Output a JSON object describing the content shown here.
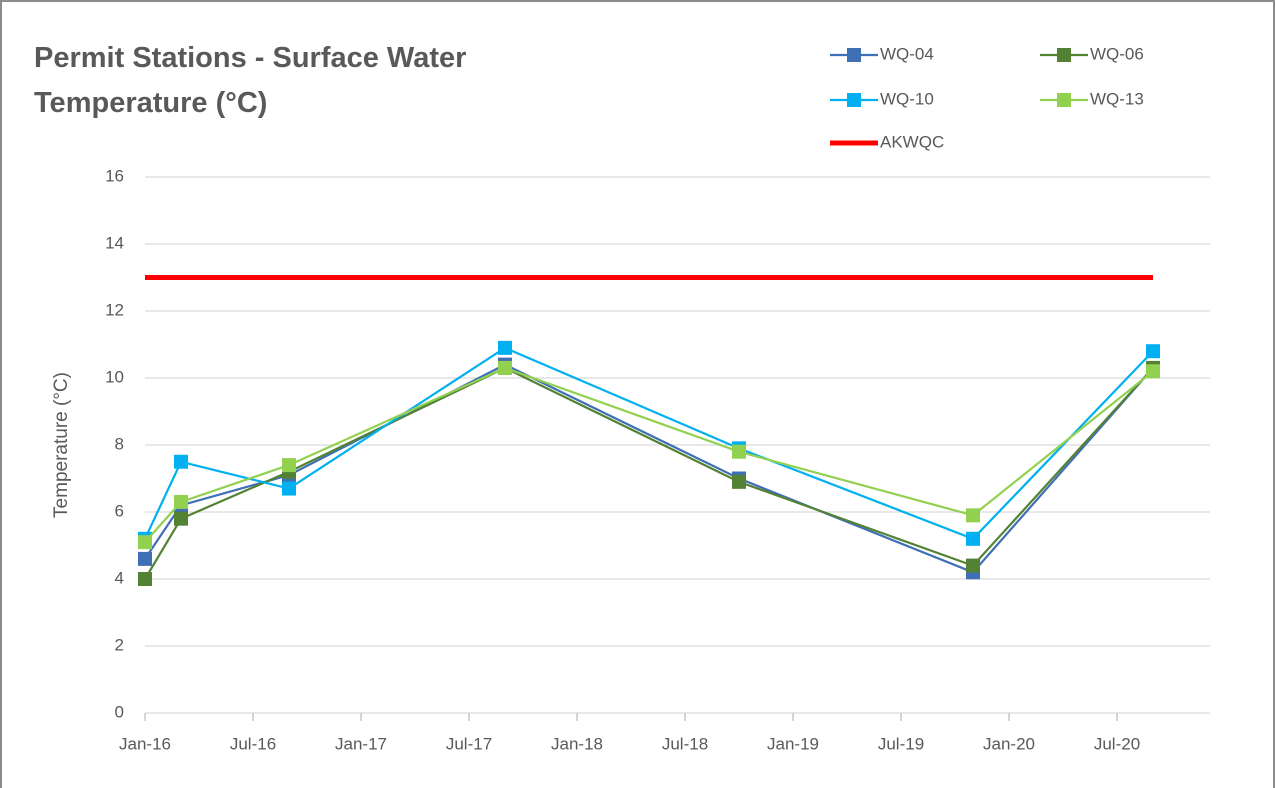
{
  "chart_data": {
    "type": "line",
    "title": "Permit Stations - Surface Water Temperature (°C)",
    "y_label": "Temperature (°C)",
    "x": [
      "2016-01",
      "2016-03",
      "2016-09",
      "2017-09",
      "2018-10",
      "2019-11",
      "2020-09"
    ],
    "series": [
      {
        "name": "WQ-04",
        "color": "#3f6fb5",
        "marker": true,
        "values": [
          4.6,
          6.2,
          7.1,
          10.4,
          7.0,
          4.2,
          10.3
        ]
      },
      {
        "name": "WQ-06",
        "color": "#548235",
        "marker": true,
        "values": [
          4.0,
          5.8,
          7.2,
          10.3,
          6.9,
          4.4,
          10.3
        ]
      },
      {
        "name": "WQ-10",
        "color": "#00b0f0",
        "marker": true,
        "values": [
          5.2,
          7.5,
          6.7,
          10.9,
          7.9,
          5.2,
          10.8
        ]
      },
      {
        "name": "WQ-13",
        "color": "#92d050",
        "marker": true,
        "values": [
          5.1,
          6.3,
          7.4,
          10.3,
          7.8,
          5.9,
          10.2
        ]
      },
      {
        "name": "AKWQC",
        "color": "#ff0000",
        "marker": false,
        "values": [
          13,
          13,
          13,
          13,
          13,
          13,
          13
        ]
      }
    ],
    "xlim": [
      "2016-01",
      "2020-12"
    ],
    "xticks": [
      {
        "value": "2016-01",
        "label": "Jan-16"
      },
      {
        "value": "2016-07",
        "label": "Jul-16"
      },
      {
        "value": "2017-01",
        "label": "Jan-17"
      },
      {
        "value": "2017-07",
        "label": "Jul-17"
      },
      {
        "value": "2018-01",
        "label": "Jan-18"
      },
      {
        "value": "2018-07",
        "label": "Jul-18"
      },
      {
        "value": "2019-01",
        "label": "Jan-19"
      },
      {
        "value": "2019-07",
        "label": "Jul-19"
      },
      {
        "value": "2020-01",
        "label": "Jan-20"
      },
      {
        "value": "2020-07",
        "label": "Jul-20"
      }
    ],
    "ylim": [
      0,
      16
    ],
    "yticks": [
      0,
      2,
      4,
      6,
      8,
      10,
      12,
      14,
      16
    ],
    "grid": true,
    "legend": "upper right"
  }
}
